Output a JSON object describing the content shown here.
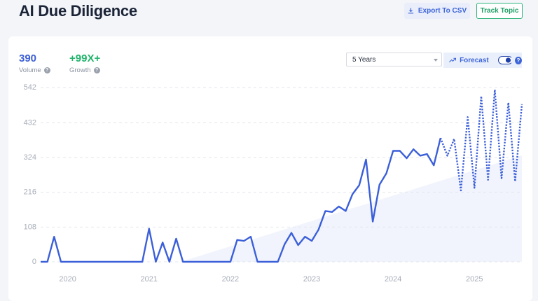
{
  "title": "AI Due Diligence",
  "export_button": "Export To CSV",
  "track_button": "Track Topic",
  "help_icon": "?",
  "stats": [
    {
      "value": "390",
      "label": "Volume"
    },
    {
      "value": "+99X+",
      "label": "Growth"
    }
  ],
  "range_select": "5 Years",
  "forecast_toggle": "Forecast",
  "chart_data": {
    "type": "line",
    "x": [
      2019.667,
      2019.75,
      2019.833,
      2019.917,
      2020,
      2020.083,
      2020.167,
      2020.25,
      2020.333,
      2020.417,
      2020.5,
      2020.583,
      2020.667,
      2020.75,
      2020.833,
      2020.917,
      2021,
      2021.083,
      2021.167,
      2021.25,
      2021.333,
      2021.417,
      2021.5,
      2021.583,
      2021.667,
      2021.75,
      2021.833,
      2021.917,
      2022,
      2022.083,
      2022.167,
      2022.25,
      2022.333,
      2022.417,
      2022.5,
      2022.583,
      2022.667,
      2022.75,
      2022.833,
      2022.917,
      2023,
      2023.083,
      2023.167,
      2023.25,
      2023.333,
      2023.417,
      2023.5,
      2023.583,
      2023.667,
      2023.75,
      2023.833,
      2023.917,
      2024,
      2024.083,
      2024.167,
      2024.25,
      2024.333,
      2024.417,
      2024.5,
      2024.583,
      2024.667,
      2024.75,
      2024.833,
      2024.917,
      2025,
      2025.083,
      2025.167,
      2025.25,
      2025.333,
      2025.417,
      2025.5,
      2025.583
    ],
    "series": [
      {
        "color": "#3b5fd9",
        "dashed": false,
        "values": [
          0,
          0,
          78,
          0,
          0,
          0,
          0,
          0,
          0,
          0,
          0,
          0,
          0,
          0,
          0,
          0,
          103,
          0,
          60,
          0,
          72,
          0,
          0,
          0,
          0,
          0,
          0,
          0,
          0,
          68,
          65,
          78,
          0,
          0,
          0,
          0,
          55,
          90,
          52,
          78,
          65,
          100,
          158,
          155,
          172,
          158,
          210,
          238,
          318,
          125,
          240,
          275,
          345,
          345,
          322,
          350,
          330,
          335,
          300,
          385,
          null,
          null,
          null,
          null,
          null,
          null,
          null,
          null,
          null,
          null,
          null,
          null
        ]
      },
      {
        "color": "#3b5fd9",
        "dashed": true,
        "values": [
          null,
          null,
          null,
          null,
          null,
          null,
          null,
          null,
          null,
          null,
          null,
          null,
          null,
          null,
          null,
          null,
          null,
          null,
          null,
          null,
          null,
          null,
          null,
          null,
          null,
          null,
          null,
          null,
          null,
          null,
          null,
          null,
          null,
          null,
          null,
          null,
          null,
          null,
          null,
          null,
          null,
          null,
          null,
          null,
          null,
          null,
          null,
          null,
          null,
          null,
          null,
          null,
          null,
          null,
          null,
          null,
          null,
          null,
          null,
          385,
          330,
          382,
          222,
          450,
          230,
          515,
          255,
          535,
          260,
          495,
          250,
          490
        ]
      }
    ],
    "xlim": [
      2019.667,
      2025.583
    ],
    "xticks": [
      2020,
      2021,
      2022,
      2023,
      2024,
      2025
    ],
    "ylim": [
      0,
      542
    ],
    "yticks": [
      0,
      108,
      216,
      324,
      432,
      542
    ],
    "grid": true
  }
}
